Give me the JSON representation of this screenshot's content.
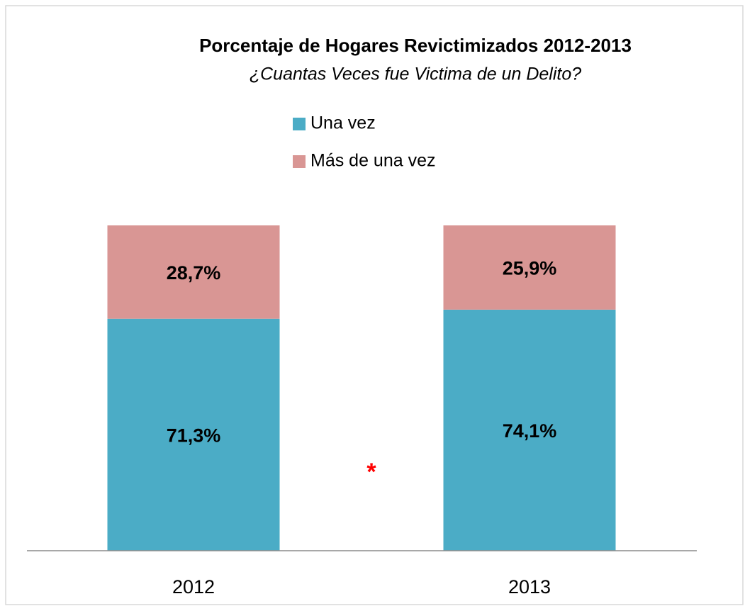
{
  "chart_data": {
    "type": "stacked_bar",
    "title": "Porcentaje de Hogares Revictimizados 2012-2013",
    "subtitle": "¿Cuantas Veces fue Victima de un Delito?",
    "categories": [
      "2012",
      "2013"
    ],
    "series": [
      {
        "name": "Una vez",
        "color": "#4bacc6",
        "values": [
          71.3,
          74.1
        ],
        "value_labels": [
          "71,3%",
          "74,1%"
        ]
      },
      {
        "name": "Más de una vez",
        "color": "#d99694",
        "values": [
          28.7,
          25.9
        ],
        "value_labels": [
          "28,7%",
          "25,9%"
        ]
      }
    ],
    "annotation": "*",
    "ylim": [
      0,
      100
    ],
    "legend": "top"
  }
}
